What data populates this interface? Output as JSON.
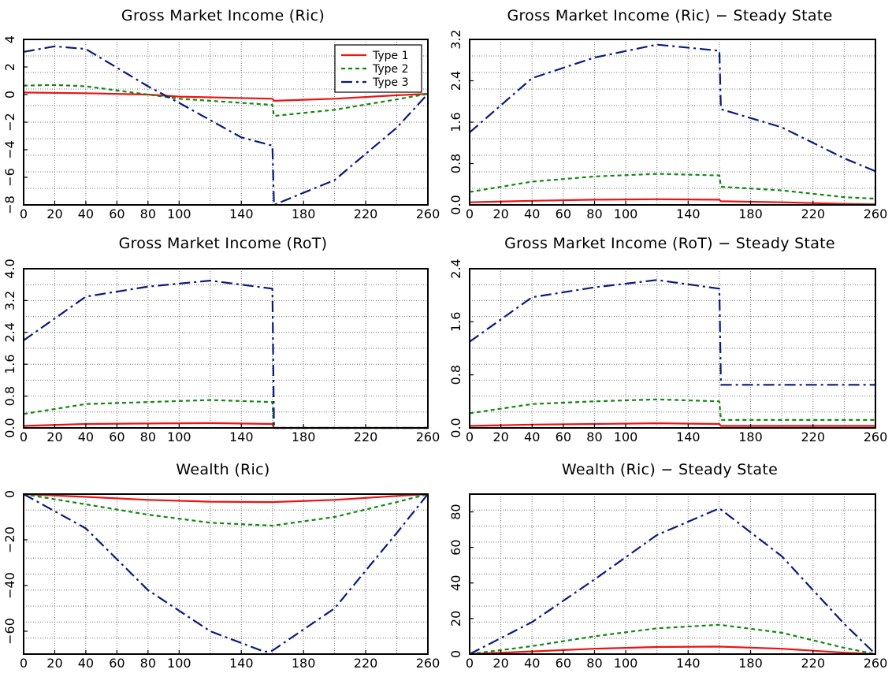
{
  "colors": {
    "type1": "#ee1111",
    "type2": "#118811",
    "type3": "#0a1a7a",
    "grid": "#777777",
    "frame": "#000000"
  },
  "legend": {
    "entries": [
      {
        "label": "Type 1",
        "series": 0
      },
      {
        "label": "Type 2",
        "series": 1
      },
      {
        "label": "Type 3",
        "series": 2
      }
    ],
    "placement": "top-right of first panel"
  },
  "chart_data": [
    {
      "type": "line",
      "title": "Gross Market Income (Ric)",
      "xlim": [
        0,
        260
      ],
      "ylim": [
        -8,
        4
      ],
      "xticks": [
        0,
        20,
        40,
        60,
        80,
        100,
        140,
        180,
        220,
        260
      ],
      "yticks": [
        4,
        2,
        0,
        -2,
        -4,
        -6,
        -8
      ],
      "ytick_labels": [
        "4",
        "2",
        "0",
        "−2",
        "−4",
        "−6",
        "−8"
      ],
      "ytick_rotated": true,
      "grid": true,
      "legend": true,
      "series": [
        {
          "name": "Type 1",
          "x": [
            0,
            40,
            80,
            100,
            160,
            161,
            200,
            240,
            260
          ],
          "y": [
            0.15,
            0.1,
            0.0,
            -0.15,
            -0.3,
            -0.45,
            -0.3,
            -0.05,
            0.05
          ]
        },
        {
          "name": "Type 2",
          "x": [
            0,
            20,
            40,
            80,
            100,
            160,
            161,
            200,
            240,
            260
          ],
          "y": [
            0.65,
            0.7,
            0.6,
            0.0,
            -0.3,
            -0.75,
            -1.55,
            -1.1,
            -0.35,
            0.05
          ]
        },
        {
          "name": "Type 3",
          "x": [
            0,
            20,
            40,
            80,
            100,
            140,
            160,
            161,
            200,
            240,
            260
          ],
          "y": [
            3.1,
            3.5,
            3.3,
            0.6,
            -0.6,
            -3.1,
            -3.7,
            -8.0,
            -6.2,
            -2.4,
            0.05
          ]
        }
      ]
    },
    {
      "type": "line",
      "title": "Gross Market Income (Ric) − Steady State",
      "xlim": [
        0,
        260
      ],
      "ylim": [
        0,
        3.2
      ],
      "xticks": [
        0,
        20,
        40,
        60,
        80,
        100,
        140,
        180,
        220,
        260
      ],
      "yticks": [
        0,
        0.8,
        1.6,
        2.4,
        3.2
      ],
      "ytick_labels": [
        "0.0",
        "0.8",
        "1.6",
        "2.4",
        "3.2"
      ],
      "ytick_rotated": true,
      "grid": true,
      "legend": false,
      "series": [
        {
          "name": "Type 1",
          "x": [
            0,
            40,
            80,
            120,
            160,
            161,
            200,
            240,
            260
          ],
          "y": [
            0.05,
            0.08,
            0.1,
            0.11,
            0.1,
            0.07,
            0.05,
            0.02,
            0.01
          ]
        },
        {
          "name": "Type 2",
          "x": [
            0,
            40,
            80,
            120,
            160,
            161,
            200,
            240,
            260
          ],
          "y": [
            0.25,
            0.45,
            0.55,
            0.6,
            0.57,
            0.35,
            0.28,
            0.15,
            0.12
          ]
        },
        {
          "name": "Type 3",
          "x": [
            0,
            40,
            80,
            120,
            160,
            161,
            200,
            240,
            260
          ],
          "y": [
            1.4,
            2.45,
            2.85,
            3.1,
            2.98,
            1.85,
            1.5,
            0.9,
            0.65
          ]
        }
      ]
    },
    {
      "type": "line",
      "title": "Gross Market Income (RoT)",
      "xlim": [
        0,
        260
      ],
      "ylim": [
        0,
        4.0
      ],
      "xticks": [
        0,
        20,
        40,
        60,
        80,
        100,
        140,
        180,
        220,
        260
      ],
      "yticks": [
        0,
        0.8,
        1.6,
        2.4,
        3.2,
        4.0
      ],
      "ytick_labels": [
        "0.0",
        "0.8",
        "1.6",
        "2.4",
        "3.2",
        "4.0"
      ],
      "ytick_rotated": true,
      "grid": true,
      "legend": false,
      "series": [
        {
          "name": "Type 1",
          "x": [
            0,
            40,
            80,
            120,
            160,
            161,
            260
          ],
          "y": [
            0.05,
            0.1,
            0.11,
            0.12,
            0.1,
            0.0,
            0.0
          ]
        },
        {
          "name": "Type 2",
          "x": [
            0,
            40,
            80,
            120,
            160,
            161,
            260
          ],
          "y": [
            0.35,
            0.6,
            0.65,
            0.7,
            0.65,
            0.0,
            0.0
          ]
        },
        {
          "name": "Type 3",
          "x": [
            0,
            40,
            80,
            120,
            160,
            161,
            260
          ],
          "y": [
            2.2,
            3.3,
            3.55,
            3.7,
            3.5,
            0.0,
            0.0
          ]
        }
      ]
    },
    {
      "type": "line",
      "title": "Gross Market Income (RoT) − Steady State",
      "xlim": [
        0,
        260
      ],
      "ylim": [
        0,
        2.4
      ],
      "xticks": [
        0,
        20,
        40,
        60,
        80,
        100,
        140,
        180,
        220,
        260
      ],
      "yticks": [
        0,
        0.8,
        1.6,
        2.4
      ],
      "ytick_labels": [
        "0.0",
        "0.8",
        "1.6",
        "2.4"
      ],
      "ytick_rotated": true,
      "grid": true,
      "legend": false,
      "series": [
        {
          "name": "Type 1",
          "x": [
            0,
            40,
            80,
            120,
            160,
            161,
            260
          ],
          "y": [
            0.03,
            0.05,
            0.06,
            0.07,
            0.06,
            0.03,
            0.03
          ]
        },
        {
          "name": "Type 2",
          "x": [
            0,
            40,
            80,
            120,
            160,
            161,
            260
          ],
          "y": [
            0.22,
            0.36,
            0.4,
            0.43,
            0.4,
            0.12,
            0.12
          ]
        },
        {
          "name": "Type 3",
          "x": [
            0,
            40,
            80,
            120,
            160,
            161,
            260
          ],
          "y": [
            1.3,
            1.97,
            2.12,
            2.23,
            2.1,
            0.65,
            0.65
          ]
        }
      ]
    },
    {
      "type": "line",
      "title": "Wealth (Ric)",
      "xlim": [
        0,
        260
      ],
      "ylim": [
        -70,
        0
      ],
      "xticks": [
        0,
        20,
        40,
        60,
        80,
        100,
        140,
        180,
        220,
        260
      ],
      "yticks": [
        0,
        -20,
        -40,
        -60
      ],
      "ytick_labels": [
        "0",
        "−20",
        "−40",
        "−60"
      ],
      "ytick_rotated": true,
      "grid": true,
      "legend": false,
      "series": [
        {
          "name": "Type 1",
          "x": [
            0,
            40,
            80,
            120,
            160,
            200,
            240,
            260
          ],
          "y": [
            0,
            -1.2,
            -2.5,
            -3.3,
            -3.5,
            -2.5,
            -0.8,
            0
          ]
        },
        {
          "name": "Type 2",
          "x": [
            0,
            40,
            80,
            120,
            160,
            200,
            240,
            260
          ],
          "y": [
            0,
            -4.5,
            -9,
            -12.5,
            -13.8,
            -10,
            -3.5,
            0
          ]
        },
        {
          "name": "Type 3",
          "x": [
            0,
            40,
            80,
            120,
            155,
            160,
            200,
            240,
            260
          ],
          "y": [
            0,
            -15,
            -42,
            -60,
            -69,
            -68.5,
            -50,
            -17,
            0
          ]
        }
      ]
    },
    {
      "type": "line",
      "title": "Wealth (Ric) − Steady State",
      "xlim": [
        0,
        260
      ],
      "ylim": [
        0,
        90
      ],
      "xticks": [
        0,
        20,
        40,
        60,
        80,
        100,
        140,
        180,
        220,
        260
      ],
      "yticks": [
        0,
        20,
        40,
        60,
        80
      ],
      "ytick_labels": [
        "0",
        "20",
        "40",
        "60",
        "80"
      ],
      "ytick_rotated": true,
      "grid": true,
      "legend": false,
      "series": [
        {
          "name": "Type 1",
          "x": [
            0,
            40,
            80,
            120,
            160,
            200,
            240,
            260
          ],
          "y": [
            0,
            1.5,
            3,
            4,
            4.2,
            3,
            0.8,
            0
          ]
        },
        {
          "name": "Type 2",
          "x": [
            0,
            40,
            80,
            120,
            160,
            200,
            240,
            260
          ],
          "y": [
            0,
            4.5,
            10,
            14.5,
            16.5,
            12,
            3.5,
            0
          ]
        },
        {
          "name": "Type 3",
          "x": [
            0,
            40,
            80,
            120,
            160,
            200,
            240,
            260
          ],
          "y": [
            0,
            18,
            42,
            67,
            82,
            55,
            17,
            0
          ]
        }
      ]
    }
  ]
}
